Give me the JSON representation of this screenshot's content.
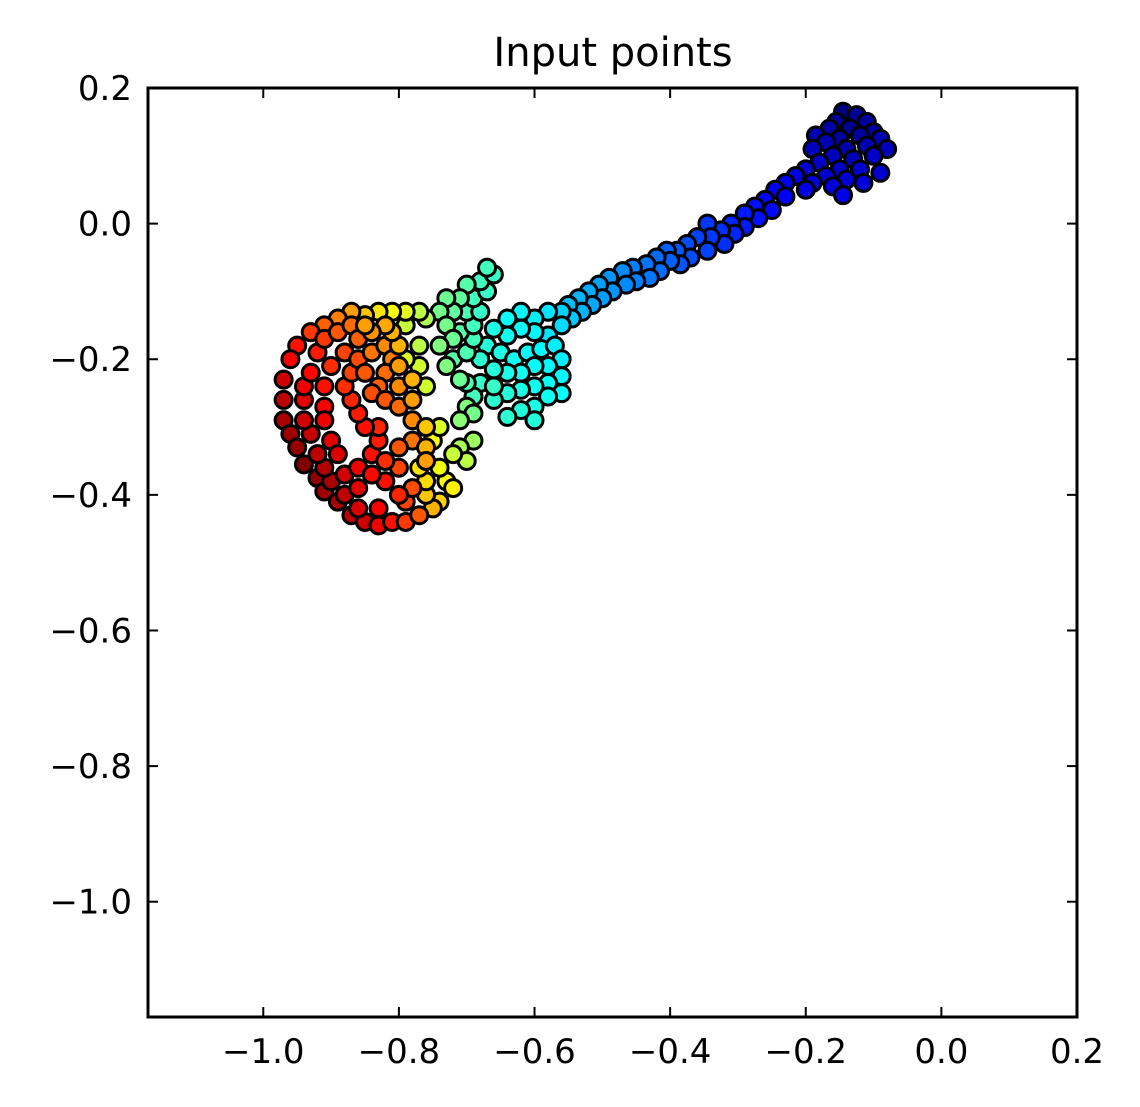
{
  "chart_data": {
    "type": "scatter",
    "title": "Input points",
    "xlabel": "",
    "ylabel": "",
    "xlim": [
      -1.17,
      0.2
    ],
    "ylim": [
      -1.17,
      0.2
    ],
    "xticks": [
      -1.0,
      -0.8,
      -0.6,
      -0.4,
      -0.2,
      0.0,
      0.2
    ],
    "yticks": [
      0.2,
      0.0,
      -0.2,
      -0.4,
      -0.6,
      -0.8,
      -1.0
    ],
    "xtick_labels": [
      "−1.0",
      "−0.8",
      "−0.6",
      "−0.4",
      "−0.2",
      "0.0",
      "0.2"
    ],
    "ytick_labels": [
      "0.2",
      "0.0",
      "−0.2",
      "−0.4",
      "−0.6",
      "−0.8",
      "−1.0"
    ],
    "grid": false,
    "colormap": "jet",
    "color_encoding": "position along the guitar from headstock (blue) to body bottom (dark red)",
    "marker_edge_color": "#000000",
    "points": [
      [
        -0.145,
        0.165,
        0.0
      ],
      [
        -0.125,
        0.16,
        0.02
      ],
      [
        -0.155,
        0.15,
        0.02
      ],
      [
        -0.11,
        0.15,
        0.03
      ],
      [
        -0.135,
        0.14,
        0.02
      ],
      [
        -0.165,
        0.14,
        0.04
      ],
      [
        -0.1,
        0.135,
        0.04
      ],
      [
        -0.15,
        0.125,
        0.03
      ],
      [
        -0.12,
        0.13,
        0.03
      ],
      [
        -0.185,
        0.13,
        0.05
      ],
      [
        -0.09,
        0.125,
        0.05
      ],
      [
        -0.17,
        0.12,
        0.05
      ],
      [
        -0.14,
        0.11,
        0.04
      ],
      [
        -0.11,
        0.115,
        0.05
      ],
      [
        -0.08,
        0.11,
        0.06
      ],
      [
        -0.19,
        0.11,
        0.06
      ],
      [
        -0.16,
        0.1,
        0.06
      ],
      [
        -0.13,
        0.095,
        0.06
      ],
      [
        -0.1,
        0.1,
        0.07
      ],
      [
        -0.18,
        0.09,
        0.07
      ],
      [
        -0.15,
        0.08,
        0.07
      ],
      [
        -0.12,
        0.08,
        0.08
      ],
      [
        -0.09,
        0.075,
        0.08
      ],
      [
        -0.2,
        0.08,
        0.08
      ],
      [
        -0.17,
        0.07,
        0.08
      ],
      [
        -0.14,
        0.065,
        0.08
      ],
      [
        -0.115,
        0.06,
        0.09
      ],
      [
        -0.16,
        0.055,
        0.09
      ],
      [
        -0.19,
        0.06,
        0.09
      ],
      [
        -0.145,
        0.042,
        0.1
      ],
      [
        -0.2,
        0.05,
        0.1
      ],
      [
        -0.215,
        0.07,
        0.1
      ],
      [
        -0.23,
        0.06,
        0.11
      ],
      [
        -0.245,
        0.05,
        0.12
      ],
      [
        -0.23,
        0.04,
        0.12
      ],
      [
        -0.26,
        0.035,
        0.13
      ],
      [
        -0.25,
        0.02,
        0.13
      ],
      [
        -0.275,
        0.025,
        0.14
      ],
      [
        -0.27,
        0.008,
        0.14
      ],
      [
        -0.29,
        0.015,
        0.15
      ],
      [
        -0.29,
        -0.005,
        0.15
      ],
      [
        -0.31,
        0.0,
        0.16
      ],
      [
        -0.305,
        -0.015,
        0.16
      ],
      [
        -0.325,
        -0.01,
        0.17
      ],
      [
        -0.32,
        -0.03,
        0.17
      ],
      [
        -0.345,
        0.0,
        0.18
      ],
      [
        -0.34,
        -0.02,
        0.18
      ],
      [
        -0.36,
        -0.02,
        0.19
      ],
      [
        -0.345,
        -0.04,
        0.19
      ],
      [
        -0.375,
        -0.03,
        0.2
      ],
      [
        -0.37,
        -0.05,
        0.2
      ],
      [
        -0.39,
        -0.04,
        0.21
      ],
      [
        -0.385,
        -0.06,
        0.21
      ],
      [
        -0.405,
        -0.04,
        0.22
      ],
      [
        -0.4,
        -0.055,
        0.22
      ],
      [
        -0.42,
        -0.05,
        0.23
      ],
      [
        -0.415,
        -0.07,
        0.23
      ],
      [
        -0.435,
        -0.06,
        0.24
      ],
      [
        -0.43,
        -0.08,
        0.24
      ],
      [
        -0.455,
        -0.065,
        0.25
      ],
      [
        -0.45,
        -0.085,
        0.25
      ],
      [
        -0.47,
        -0.07,
        0.26
      ],
      [
        -0.465,
        -0.09,
        0.26
      ],
      [
        -0.49,
        -0.08,
        0.27
      ],
      [
        -0.485,
        -0.1,
        0.27
      ],
      [
        -0.505,
        -0.09,
        0.28
      ],
      [
        -0.5,
        -0.11,
        0.28
      ],
      [
        -0.52,
        -0.1,
        0.29
      ],
      [
        -0.515,
        -0.12,
        0.29
      ],
      [
        -0.535,
        -0.11,
        0.3
      ],
      [
        -0.53,
        -0.13,
        0.3
      ],
      [
        -0.55,
        -0.12,
        0.31
      ],
      [
        -0.545,
        -0.14,
        0.32
      ],
      [
        -0.56,
        -0.13,
        0.33
      ],
      [
        -0.56,
        -0.15,
        0.34
      ],
      [
        -0.58,
        -0.13,
        0.35
      ],
      [
        -0.6,
        -0.14,
        0.36
      ],
      [
        -0.62,
        -0.13,
        0.37
      ],
      [
        -0.64,
        -0.14,
        0.38
      ],
      [
        -0.58,
        -0.165,
        0.35
      ],
      [
        -0.6,
        -0.16,
        0.37
      ],
      [
        -0.62,
        -0.155,
        0.38
      ],
      [
        -0.64,
        -0.165,
        0.39
      ],
      [
        -0.66,
        -0.155,
        0.4
      ],
      [
        -0.67,
        -0.18,
        0.41
      ],
      [
        -0.65,
        -0.19,
        0.4
      ],
      [
        -0.63,
        -0.2,
        0.39
      ],
      [
        -0.61,
        -0.19,
        0.38
      ],
      [
        -0.59,
        -0.185,
        0.37
      ],
      [
        -0.57,
        -0.18,
        0.36
      ],
      [
        -0.56,
        -0.2,
        0.36
      ],
      [
        -0.58,
        -0.21,
        0.37
      ],
      [
        -0.6,
        -0.21,
        0.38
      ],
      [
        -0.62,
        -0.22,
        0.39
      ],
      [
        -0.64,
        -0.22,
        0.4
      ],
      [
        -0.66,
        -0.215,
        0.41
      ],
      [
        -0.68,
        -0.2,
        0.42
      ],
      [
        -0.56,
        -0.225,
        0.37
      ],
      [
        -0.58,
        -0.235,
        0.38
      ],
      [
        -0.6,
        -0.24,
        0.39
      ],
      [
        -0.62,
        -0.245,
        0.4
      ],
      [
        -0.64,
        -0.25,
        0.41
      ],
      [
        -0.66,
        -0.26,
        0.42
      ],
      [
        -0.68,
        -0.235,
        0.43
      ],
      [
        -0.56,
        -0.25,
        0.38
      ],
      [
        -0.58,
        -0.255,
        0.39
      ],
      [
        -0.6,
        -0.27,
        0.4
      ],
      [
        -0.62,
        -0.275,
        0.41
      ],
      [
        -0.64,
        -0.285,
        0.42
      ],
      [
        -0.6,
        -0.29,
        0.41
      ],
      [
        -0.66,
        -0.24,
        0.43
      ],
      [
        -0.69,
        -0.255,
        0.44
      ],
      [
        -0.7,
        -0.235,
        0.45
      ],
      [
        -0.72,
        -0.2,
        0.46
      ],
      [
        -0.7,
        -0.19,
        0.45
      ],
      [
        -0.69,
        -0.17,
        0.44
      ],
      [
        -0.71,
        -0.16,
        0.46
      ],
      [
        -0.69,
        -0.15,
        0.44
      ],
      [
        -0.7,
        -0.13,
        0.45
      ],
      [
        -0.68,
        -0.13,
        0.43
      ],
      [
        -0.69,
        -0.11,
        0.44
      ],
      [
        -0.67,
        -0.1,
        0.43
      ],
      [
        -0.68,
        -0.085,
        0.44
      ],
      [
        -0.66,
        -0.075,
        0.43
      ],
      [
        -0.67,
        -0.065,
        0.44
      ],
      [
        -0.7,
        -0.09,
        0.46
      ],
      [
        -0.71,
        -0.11,
        0.47
      ],
      [
        -0.72,
        -0.13,
        0.47
      ],
      [
        -0.73,
        -0.11,
        0.48
      ],
      [
        -0.74,
        -0.13,
        0.49
      ],
      [
        -0.73,
        -0.15,
        0.49
      ],
      [
        -0.72,
        -0.17,
        0.48
      ],
      [
        -0.74,
        -0.18,
        0.5
      ],
      [
        -0.73,
        -0.21,
        0.5
      ],
      [
        -0.71,
        -0.23,
        0.48
      ],
      [
        -0.7,
        -0.27,
        0.5
      ],
      [
        -0.69,
        -0.28,
        0.49
      ],
      [
        -0.71,
        -0.29,
        0.51
      ],
      [
        -0.69,
        -0.32,
        0.53
      ],
      [
        -0.71,
        -0.33,
        0.54
      ],
      [
        -0.7,
        -0.35,
        0.56
      ],
      [
        -0.72,
        -0.34,
        0.57
      ],
      [
        -0.73,
        -0.38,
        0.62
      ],
      [
        -0.72,
        -0.39,
        0.64
      ],
      [
        -0.74,
        -0.36,
        0.61
      ],
      [
        -0.74,
        -0.41,
        0.67
      ],
      [
        -0.75,
        -0.42,
        0.7
      ],
      [
        -0.76,
        -0.4,
        0.68
      ],
      [
        -0.76,
        -0.38,
        0.66
      ],
      [
        -0.77,
        -0.36,
        0.65
      ],
      [
        -0.75,
        -0.32,
        0.62
      ],
      [
        -0.74,
        -0.3,
        0.59
      ],
      [
        -0.76,
        -0.24,
        0.58
      ],
      [
        -0.77,
        -0.21,
        0.58
      ],
      [
        -0.77,
        -0.18,
        0.56
      ],
      [
        -0.79,
        -0.2,
        0.59
      ],
      [
        -0.79,
        -0.15,
        0.57
      ],
      [
        -0.76,
        -0.14,
        0.55
      ],
      [
        -0.77,
        -0.13,
        0.56
      ],
      [
        -0.79,
        -0.13,
        0.6
      ],
      [
        -0.81,
        -0.13,
        0.62
      ],
      [
        -0.83,
        -0.13,
        0.65
      ],
      [
        -0.85,
        -0.135,
        0.68
      ],
      [
        -0.87,
        -0.13,
        0.72
      ],
      [
        -0.89,
        -0.14,
        0.75
      ],
      [
        -0.91,
        -0.15,
        0.78
      ],
      [
        -0.93,
        -0.16,
        0.82
      ],
      [
        -0.95,
        -0.18,
        0.86
      ],
      [
        -0.96,
        -0.2,
        0.88
      ],
      [
        -0.97,
        -0.23,
        0.92
      ],
      [
        -0.97,
        -0.26,
        0.94
      ],
      [
        -0.97,
        -0.29,
        0.96
      ],
      [
        -0.96,
        -0.31,
        0.97
      ],
      [
        -0.95,
        -0.33,
        0.98
      ],
      [
        -0.94,
        -0.355,
        1.0
      ],
      [
        -0.92,
        -0.375,
        0.98
      ],
      [
        -0.91,
        -0.395,
        0.97
      ],
      [
        -0.89,
        -0.41,
        0.96
      ],
      [
        -0.87,
        -0.43,
        0.94
      ],
      [
        -0.85,
        -0.44,
        0.92
      ],
      [
        -0.83,
        -0.445,
        0.89
      ],
      [
        -0.81,
        -0.44,
        0.86
      ],
      [
        -0.79,
        -0.44,
        0.82
      ],
      [
        -0.77,
        -0.43,
        0.79
      ],
      [
        -0.79,
        -0.41,
        0.81
      ],
      [
        -0.78,
        -0.39,
        0.8
      ],
      [
        -0.8,
        -0.4,
        0.84
      ],
      [
        -0.82,
        -0.38,
        0.86
      ],
      [
        -0.83,
        -0.42,
        0.88
      ],
      [
        -0.86,
        -0.42,
        0.91
      ],
      [
        -0.88,
        -0.4,
        0.94
      ],
      [
        -0.9,
        -0.38,
        0.96
      ],
      [
        -0.91,
        -0.36,
        0.95
      ],
      [
        -0.92,
        -0.34,
        0.94
      ],
      [
        -0.93,
        -0.31,
        0.93
      ],
      [
        -0.94,
        -0.29,
        0.92
      ],
      [
        -0.94,
        -0.26,
        0.9
      ],
      [
        -0.94,
        -0.24,
        0.89
      ],
      [
        -0.93,
        -0.22,
        0.87
      ],
      [
        -0.92,
        -0.19,
        0.85
      ],
      [
        -0.91,
        -0.17,
        0.82
      ],
      [
        -0.89,
        -0.16,
        0.79
      ],
      [
        -0.87,
        -0.15,
        0.77
      ],
      [
        -0.86,
        -0.17,
        0.78
      ],
      [
        -0.88,
        -0.19,
        0.81
      ],
      [
        -0.9,
        -0.21,
        0.83
      ],
      [
        -0.91,
        -0.24,
        0.86
      ],
      [
        -0.91,
        -0.27,
        0.88
      ],
      [
        -0.91,
        -0.29,
        0.89
      ],
      [
        -0.9,
        -0.32,
        0.9
      ],
      [
        -0.89,
        -0.34,
        0.91
      ],
      [
        -0.88,
        -0.37,
        0.92
      ],
      [
        -0.86,
        -0.36,
        0.89
      ],
      [
        -0.86,
        -0.39,
        0.9
      ],
      [
        -0.84,
        -0.37,
        0.87
      ],
      [
        -0.84,
        -0.34,
        0.86
      ],
      [
        -0.83,
        -0.32,
        0.85
      ],
      [
        -0.83,
        -0.3,
        0.84
      ],
      [
        -0.85,
        -0.3,
        0.86
      ],
      [
        -0.86,
        -0.28,
        0.85
      ],
      [
        -0.87,
        -0.26,
        0.84
      ],
      [
        -0.88,
        -0.24,
        0.83
      ],
      [
        -0.87,
        -0.22,
        0.81
      ],
      [
        -0.86,
        -0.2,
        0.8
      ],
      [
        -0.85,
        -0.22,
        0.79
      ],
      [
        -0.84,
        -0.19,
        0.76
      ],
      [
        -0.82,
        -0.18,
        0.74
      ],
      [
        -0.81,
        -0.2,
        0.75
      ],
      [
        -0.82,
        -0.22,
        0.77
      ],
      [
        -0.83,
        -0.24,
        0.78
      ],
      [
        -0.84,
        -0.25,
        0.8
      ],
      [
        -0.82,
        -0.26,
        0.79
      ],
      [
        -0.8,
        -0.27,
        0.77
      ],
      [
        -0.8,
        -0.24,
        0.74
      ],
      [
        -0.8,
        -0.21,
        0.72
      ],
      [
        -0.8,
        -0.18,
        0.7
      ],
      [
        -0.81,
        -0.16,
        0.7
      ],
      [
        -0.82,
        -0.15,
        0.71
      ],
      [
        -0.84,
        -0.16,
        0.73
      ],
      [
        -0.85,
        -0.15,
        0.72
      ],
      [
        -0.78,
        -0.23,
        0.7
      ],
      [
        -0.78,
        -0.26,
        0.72
      ],
      [
        -0.78,
        -0.29,
        0.74
      ],
      [
        -0.78,
        -0.32,
        0.76
      ],
      [
        -0.8,
        -0.33,
        0.79
      ],
      [
        -0.8,
        -0.36,
        0.81
      ],
      [
        -0.82,
        -0.35,
        0.83
      ],
      [
        -0.76,
        -0.3,
        0.68
      ],
      [
        -0.76,
        -0.33,
        0.7
      ],
      [
        -0.76,
        -0.35,
        0.72
      ]
    ]
  }
}
